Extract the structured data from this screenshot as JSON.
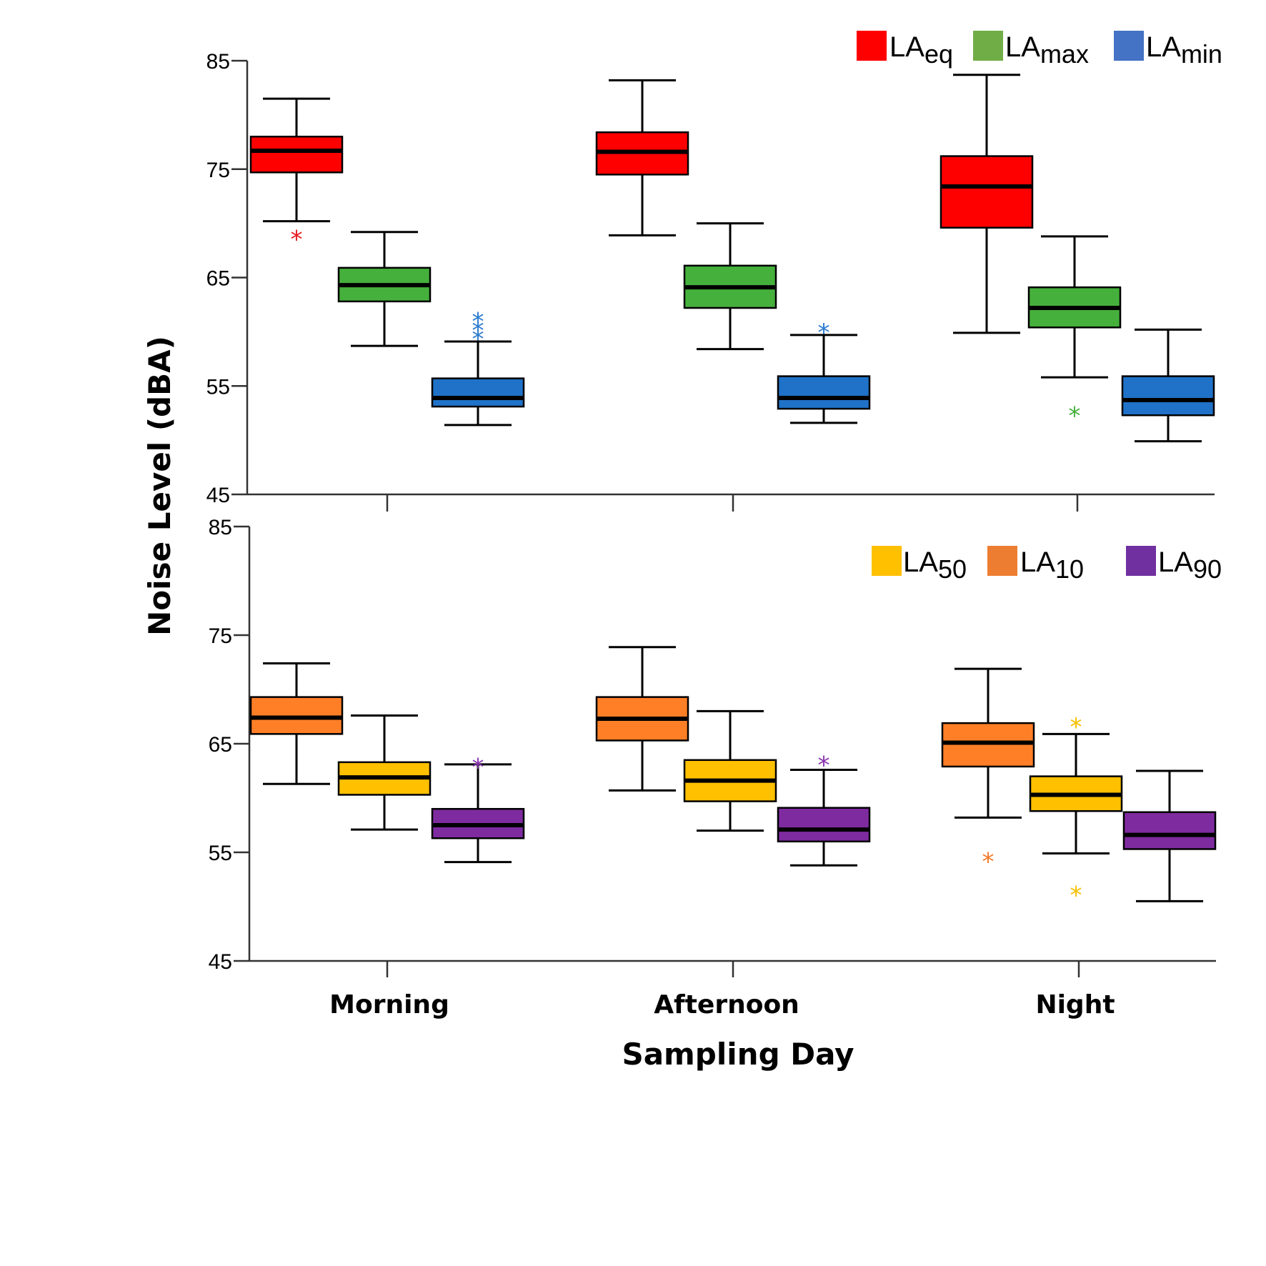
{
  "chart_data": [
    {
      "type": "boxplot",
      "panel": "top",
      "ylabel": "Noise Level (dBA)",
      "ylim": [
        45,
        85
      ],
      "yticks": [
        45,
        55,
        65,
        75,
        85
      ],
      "categories": [
        "Morning",
        "Afternoon",
        "Night"
      ],
      "legend_position": "top-right",
      "legend": [
        {
          "base": "LA",
          "sub": "eq",
          "color": "#FF0000"
        },
        {
          "base": "LA",
          "sub": "max",
          "color": "#70AD47"
        },
        {
          "base": "LA",
          "sub": "min",
          "color": "#4472C4"
        }
      ],
      "series": [
        {
          "name": "LAeq",
          "fill": "#FF0000",
          "outlier_color": "#E8191E",
          "boxes": [
            {
              "whisker_low": 70.2,
              "q1": 74.7,
              "median": 76.7,
              "q3": 78.0,
              "whisker_high": 81.5,
              "outliers": [
                69.1
              ]
            },
            {
              "whisker_low": 68.9,
              "q1": 74.5,
              "median": 76.6,
              "q3": 78.4,
              "whisker_high": 83.2,
              "outliers": []
            },
            {
              "whisker_low": 59.9,
              "q1": 69.6,
              "median": 73.4,
              "q3": 76.2,
              "whisker_high": 83.7,
              "outliers": []
            }
          ]
        },
        {
          "name": "LAmax",
          "fill": "#45B03C",
          "outlier_color": "#45B03C",
          "boxes": [
            {
              "whisker_low": 58.7,
              "q1": 62.8,
              "median": 64.3,
              "q3": 65.9,
              "whisker_high": 69.2,
              "outliers": []
            },
            {
              "whisker_low": 58.4,
              "q1": 62.2,
              "median": 64.1,
              "q3": 66.1,
              "whisker_high": 70.0,
              "outliers": []
            },
            {
              "whisker_low": 55.8,
              "q1": 60.4,
              "median": 62.2,
              "q3": 64.1,
              "whisker_high": 68.8,
              "outliers": [
                52.8
              ]
            }
          ]
        },
        {
          "name": "LAmin",
          "fill": "#1F72C8",
          "outlier_color": "#2A7AD0",
          "boxes": [
            {
              "whisker_low": 51.4,
              "q1": 53.1,
              "median": 53.9,
              "q3": 55.7,
              "whisker_high": 59.1,
              "outliers": [
                61.5,
                60.7,
                59.9
              ]
            },
            {
              "whisker_low": 51.6,
              "q1": 52.9,
              "median": 53.9,
              "q3": 55.9,
              "whisker_high": 59.7,
              "outliers": [
                60.5
              ]
            },
            {
              "whisker_low": 49.9,
              "q1": 52.3,
              "median": 53.7,
              "q3": 55.9,
              "whisker_high": 60.2,
              "outliers": []
            }
          ]
        }
      ]
    },
    {
      "type": "boxplot",
      "panel": "bottom",
      "xlabel": "Sampling Day",
      "ylim": [
        45,
        85
      ],
      "yticks": [
        45,
        55,
        65,
        75,
        85
      ],
      "categories": [
        "Morning",
        "Afternoon",
        "Night"
      ],
      "legend_position": "top-right",
      "legend": [
        {
          "base": "LA",
          "sub": "50",
          "color": "#FFC000"
        },
        {
          "base": "LA",
          "sub": "10",
          "color": "#ED7D31"
        },
        {
          "base": "LA",
          "sub": "90",
          "color": "#7030A0"
        }
      ],
      "series": [
        {
          "name": "LA10",
          "fill": "#FF7F27",
          "outlier_color": "#F07A2A",
          "boxes": [
            {
              "whisker_low": 61.3,
              "q1": 65.9,
              "median": 67.4,
              "q3": 69.3,
              "whisker_high": 72.4,
              "outliers": []
            },
            {
              "whisker_low": 60.7,
              "q1": 65.3,
              "median": 67.3,
              "q3": 69.3,
              "whisker_high": 73.9,
              "outliers": []
            },
            {
              "whisker_low": 58.2,
              "q1": 62.9,
              "median": 65.1,
              "q3": 66.9,
              "whisker_high": 71.9,
              "outliers": [
                54.7
              ]
            }
          ]
        },
        {
          "name": "LA50",
          "fill": "#FFC000",
          "outlier_color": "#F5C000",
          "boxes": [
            {
              "whisker_low": 57.1,
              "q1": 60.3,
              "median": 61.9,
              "q3": 63.3,
              "whisker_high": 67.6,
              "outliers": []
            },
            {
              "whisker_low": 57.0,
              "q1": 59.7,
              "median": 61.6,
              "q3": 63.5,
              "whisker_high": 68.0,
              "outliers": []
            },
            {
              "whisker_low": 54.9,
              "q1": 58.8,
              "median": 60.3,
              "q3": 62.0,
              "whisker_high": 65.9,
              "outliers": [
                67.1,
                51.6
              ]
            }
          ]
        },
        {
          "name": "LA90",
          "fill": "#7F2BA0",
          "outlier_color": "#8A33B0",
          "boxes": [
            {
              "whisker_low": 54.1,
              "q1": 56.3,
              "median": 57.5,
              "q3": 59.0,
              "whisker_high": 63.1,
              "outliers": [
                63.4
              ]
            },
            {
              "whisker_low": 53.8,
              "q1": 56.0,
              "median": 57.1,
              "q3": 59.1,
              "whisker_high": 62.6,
              "outliers": [
                63.6
              ]
            },
            {
              "whisker_low": 50.5,
              "q1": 55.3,
              "median": 56.6,
              "q3": 58.7,
              "whisker_high": 62.5,
              "outliers": []
            }
          ]
        }
      ]
    }
  ],
  "labels": {
    "ylabel": "Noise Level (dBA)",
    "xlabel": "Sampling Day",
    "outlier_marker": "*"
  }
}
